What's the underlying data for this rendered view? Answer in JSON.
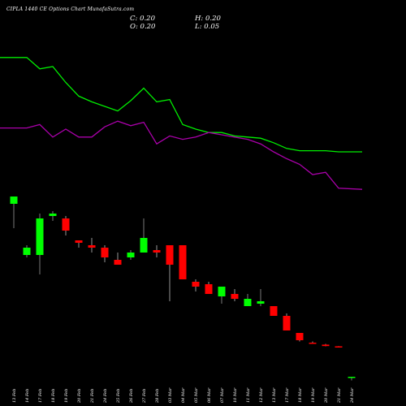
{
  "title": "CIPLA 1440 CE Options Chart MunafaSutra.com",
  "ohlc": {
    "close": "C: 0.20",
    "high": "H: 0.20",
    "open": "O: 0.20",
    "low": "L: 0.05"
  },
  "colors": {
    "background": "#000000",
    "up": "#00ff00",
    "down": "#ff0000",
    "green_line": "#00ee00",
    "purple_line": "#aa00aa",
    "text": "#ffffff"
  },
  "chart_data": {
    "type": "candlestick",
    "categories": [
      "13 Feb",
      "14 Feb",
      "17 Feb",
      "18 Feb",
      "19 Feb",
      "20 Feb",
      "21 Feb",
      "24 Feb",
      "25 Feb",
      "26 Feb",
      "27 Feb",
      "28 Feb",
      "03 Mar",
      "04 Mar",
      "05 Mar",
      "06 Mar",
      "07 Mar",
      "10 Mar",
      "11 Mar",
      "12 Mar",
      "13 Mar",
      "17 Mar",
      "18 Mar",
      "19 Mar",
      "20 Mar",
      "21 Mar",
      "24 Mar"
    ],
    "candles": [
      {
        "o": 7.3,
        "h": 7.6,
        "l": 6.3,
        "c": 7.6
      },
      {
        "o": 5.2,
        "h": 5.6,
        "l": 5.1,
        "c": 5.5
      },
      {
        "o": 5.2,
        "h": 6.9,
        "l": 4.4,
        "c": 6.7
      },
      {
        "o": 6.8,
        "h": 7.0,
        "l": 6.6,
        "c": 6.9
      },
      {
        "o": 6.7,
        "h": 6.8,
        "l": 6.0,
        "c": 6.2
      },
      {
        "o": 5.8,
        "h": 5.8,
        "l": 5.5,
        "c": 5.7
      },
      {
        "o": 5.6,
        "h": 5.9,
        "l": 5.3,
        "c": 5.5
      },
      {
        "o": 5.5,
        "h": 5.6,
        "l": 4.9,
        "c": 5.1
      },
      {
        "o": 5.0,
        "h": 5.3,
        "l": 4.8,
        "c": 4.8
      },
      {
        "o": 5.1,
        "h": 5.4,
        "l": 5.0,
        "c": 5.3
      },
      {
        "o": 5.3,
        "h": 6.7,
        "l": 5.3,
        "c": 5.9
      },
      {
        "o": 5.4,
        "h": 5.6,
        "l": 5.1,
        "c": 5.3
      },
      {
        "o": 5.6,
        "h": 5.6,
        "l": 3.3,
        "c": 4.8
      },
      {
        "o": 5.6,
        "h": 5.6,
        "l": 4.2,
        "c": 4.2
      },
      {
        "o": 4.1,
        "h": 4.2,
        "l": 3.7,
        "c": 3.9
      },
      {
        "o": 4.0,
        "h": 4.1,
        "l": 3.6,
        "c": 3.6
      },
      {
        "o": 3.5,
        "h": 3.9,
        "l": 3.2,
        "c": 3.9
      },
      {
        "o": 3.6,
        "h": 3.8,
        "l": 3.3,
        "c": 3.4
      },
      {
        "o": 3.1,
        "h": 3.6,
        "l": 3.1,
        "c": 3.4
      },
      {
        "o": 3.2,
        "h": 3.8,
        "l": 3.1,
        "c": 3.3
      },
      {
        "o": 3.1,
        "h": 3.1,
        "l": 2.7,
        "c": 2.7
      },
      {
        "o": 2.7,
        "h": 2.8,
        "l": 2.1,
        "c": 2.1
      },
      {
        "o": 2.0,
        "h": 2.0,
        "l": 1.65,
        "c": 1.7
      },
      {
        "o": 1.6,
        "h": 1.65,
        "l": 1.55,
        "c": 1.55
      },
      {
        "o": 1.52,
        "h": 1.55,
        "l": 1.45,
        "c": 1.46
      },
      {
        "o": 1.45,
        "h": 1.46,
        "l": 1.4,
        "c": 1.44
      },
      {
        "o": 0.2,
        "h": 0.2,
        "l": 0.05,
        "c": 0.2
      }
    ],
    "ma_series": [
      {
        "color": "#00ee00",
        "values": [
          15.8,
          15.8,
          14.8,
          15.0,
          13.6,
          12.4,
          11.9,
          11.5,
          11.1,
          12.0,
          13.1,
          11.9,
          12.1,
          9.9,
          9.5,
          9.2,
          9.2,
          8.9,
          8.8,
          8.7,
          8.3,
          7.8,
          7.6,
          7.6,
          7.6,
          7.5,
          7.5
        ]
      },
      {
        "color": "#aa00aa",
        "values": [
          9.6,
          9.6,
          9.9,
          8.8,
          9.5,
          8.8,
          8.8,
          9.7,
          10.2,
          9.8,
          10.1,
          8.2,
          8.9,
          8.6,
          8.8,
          9.2,
          9.0,
          8.8,
          8.6,
          8.2,
          7.5,
          6.9,
          6.4,
          5.5,
          5.7,
          4.3,
          4.2
        ]
      }
    ]
  }
}
